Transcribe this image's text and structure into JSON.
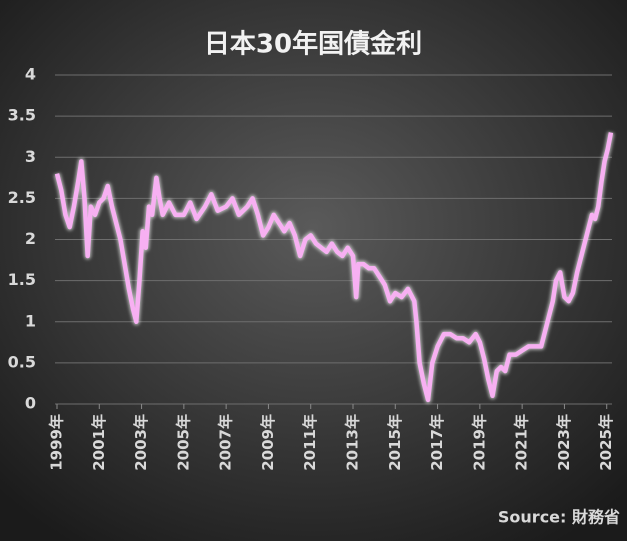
{
  "chart_data": {
    "type": "line",
    "title": "日本30年国債金利",
    "source": "Source: 財務省",
    "xlim": [
      1999,
      2025.25
    ],
    "ylim": [
      0,
      4
    ],
    "yticks": [
      0,
      0.5,
      1,
      1.5,
      2,
      2.5,
      3,
      3.5,
      4
    ],
    "xticks": [
      {
        "value": 1999,
        "label": "1999年"
      },
      {
        "value": 2001,
        "label": "2001年"
      },
      {
        "value": 2003,
        "label": "2003年"
      },
      {
        "value": 2005,
        "label": "2005年"
      },
      {
        "value": 2007,
        "label": "2007年"
      },
      {
        "value": 2009,
        "label": "2009年"
      },
      {
        "value": 2011,
        "label": "2011年"
      },
      {
        "value": 2013,
        "label": "2013年"
      },
      {
        "value": 2015,
        "label": "2015年"
      },
      {
        "value": 2017,
        "label": "2017年"
      },
      {
        "value": 2019,
        "label": "2019年"
      },
      {
        "value": 2021,
        "label": "2021年"
      },
      {
        "value": 2023,
        "label": "2023年"
      },
      {
        "value": 2025,
        "label": "2025年"
      }
    ],
    "grid": true,
    "series": [
      {
        "color": "#f7b0f2",
        "x": [
          1999.0,
          1999.2,
          1999.4,
          1999.6,
          1999.8,
          2000.0,
          2000.15,
          2000.3,
          2000.45,
          2000.6,
          2000.8,
          2001.0,
          2001.2,
          2001.4,
          2001.6,
          2001.8,
          2002.0,
          2002.2,
          2002.4,
          2002.6,
          2002.75,
          2002.9,
          2003.05,
          2003.2,
          2003.35,
          2003.5,
          2003.7,
          2003.85,
          2004.0,
          2004.3,
          2004.6,
          2005.0,
          2005.3,
          2005.6,
          2006.0,
          2006.3,
          2006.6,
          2007.0,
          2007.3,
          2007.6,
          2008.0,
          2008.25,
          2008.5,
          2008.75,
          2009.0,
          2009.25,
          2009.5,
          2009.75,
          2010.0,
          2010.25,
          2010.5,
          2010.75,
          2011.0,
          2011.25,
          2011.5,
          2011.75,
          2012.0,
          2012.25,
          2012.5,
          2012.75,
          2013.0,
          2013.15,
          2013.25,
          2013.5,
          2013.75,
          2014.0,
          2014.25,
          2014.5,
          2014.75,
          2015.0,
          2015.3,
          2015.6,
          2015.9,
          2016.0,
          2016.15,
          2016.35,
          2016.55,
          2016.75,
          2017.0,
          2017.3,
          2017.6,
          2017.9,
          2018.2,
          2018.5,
          2018.8,
          2019.0,
          2019.2,
          2019.4,
          2019.6,
          2019.8,
          2020.0,
          2020.2,
          2020.4,
          2020.7,
          2021.0,
          2021.3,
          2021.6,
          2021.9,
          2022.0,
          2022.2,
          2022.45,
          2022.6,
          2022.8,
          2023.0,
          2023.2,
          2023.4,
          2023.6,
          2023.75,
          2023.9,
          2024.1,
          2024.3,
          2024.45,
          2024.6,
          2024.75,
          2024.9,
          2025.05,
          2025.2
        ],
        "values": [
          2.8,
          2.6,
          2.3,
          2.15,
          2.4,
          2.7,
          2.95,
          2.5,
          1.8,
          2.4,
          2.3,
          2.45,
          2.5,
          2.65,
          2.4,
          2.2,
          2.0,
          1.7,
          1.4,
          1.15,
          1.0,
          1.5,
          2.1,
          1.9,
          2.4,
          2.3,
          2.75,
          2.5,
          2.3,
          2.45,
          2.3,
          2.3,
          2.45,
          2.25,
          2.4,
          2.55,
          2.35,
          2.4,
          2.5,
          2.3,
          2.4,
          2.5,
          2.3,
          2.05,
          2.15,
          2.3,
          2.2,
          2.1,
          2.2,
          2.05,
          1.8,
          2.0,
          2.05,
          1.95,
          1.9,
          1.85,
          1.95,
          1.85,
          1.8,
          1.9,
          1.8,
          1.3,
          1.7,
          1.7,
          1.65,
          1.65,
          1.55,
          1.45,
          1.25,
          1.35,
          1.3,
          1.4,
          1.25,
          1.0,
          0.5,
          0.25,
          0.05,
          0.5,
          0.7,
          0.85,
          0.85,
          0.8,
          0.8,
          0.75,
          0.85,
          0.75,
          0.55,
          0.3,
          0.1,
          0.4,
          0.45,
          0.4,
          0.6,
          0.6,
          0.65,
          0.7,
          0.7,
          0.7,
          0.8,
          1.0,
          1.25,
          1.5,
          1.6,
          1.3,
          1.25,
          1.35,
          1.6,
          1.75,
          1.9,
          2.1,
          2.3,
          2.25,
          2.4,
          2.7,
          2.95,
          3.1,
          3.3
        ]
      }
    ]
  }
}
